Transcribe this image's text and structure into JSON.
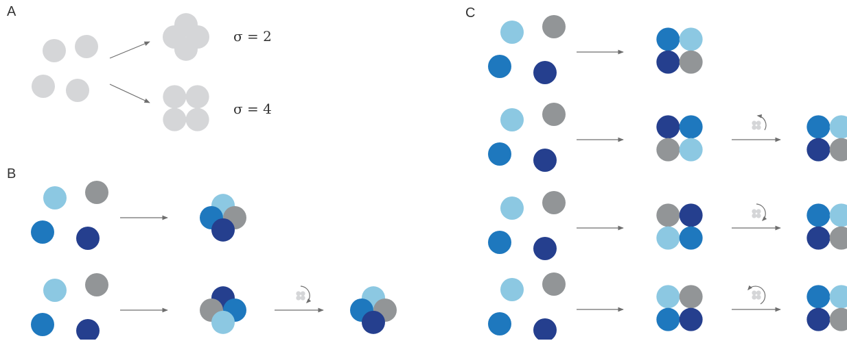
{
  "colors": {
    "light_blue": "#8CC8E2",
    "mid_blue": "#1E78BE",
    "dark_blue": "#253F8E",
    "grey": "#929597",
    "light_grey": "#D5D6D8",
    "arrow": "#6E6E6E"
  },
  "panel_a": {
    "label": "A",
    "outcomes": [
      {
        "shape": "diamond",
        "sigma_label": "σ = 2"
      },
      {
        "shape": "square",
        "sigma_label": "σ = 4"
      }
    ]
  },
  "panel_b": {
    "label": "B",
    "rows": [
      {
        "monomers": [
          "light_blue",
          "grey",
          "mid_blue",
          "dark_blue"
        ],
        "assembly": "diamond",
        "colors": [
          "light_blue",
          "mid_blue",
          "grey",
          "dark_blue"
        ],
        "rotation_icon": null
      },
      {
        "monomers": [
          "light_blue",
          "grey",
          "mid_blue",
          "dark_blue"
        ],
        "assembly": "diamond",
        "colors": [
          "dark_blue",
          "grey",
          "mid_blue",
          "light_blue"
        ],
        "rotation_icon": "cw",
        "rotated_colors": [
          "light_blue",
          "mid_blue",
          "grey",
          "dark_blue"
        ]
      }
    ]
  },
  "panel_c": {
    "label": "C",
    "rows": [
      {
        "monomers": [
          "light_blue",
          "grey",
          "mid_blue",
          "dark_blue"
        ],
        "assembly": "square",
        "colors": [
          "mid_blue",
          "light_blue",
          "dark_blue",
          "grey"
        ],
        "rotation_icon": null
      },
      {
        "monomers": [
          "light_blue",
          "grey",
          "mid_blue",
          "dark_blue"
        ],
        "assembly": "square",
        "colors": [
          "dark_blue",
          "mid_blue",
          "grey",
          "light_blue"
        ],
        "rotation_icon": "ccw",
        "rotated_colors": [
          "mid_blue",
          "light_blue",
          "dark_blue",
          "grey"
        ]
      },
      {
        "monomers": [
          "light_blue",
          "grey",
          "mid_blue",
          "dark_blue"
        ],
        "assembly": "square",
        "colors": [
          "grey",
          "dark_blue",
          "light_blue",
          "mid_blue"
        ],
        "rotation_icon": "cw",
        "rotated_colors": [
          "mid_blue",
          "light_blue",
          "dark_blue",
          "grey"
        ]
      },
      {
        "monomers": [
          "light_blue",
          "grey",
          "mid_blue",
          "dark_blue"
        ],
        "assembly": "square",
        "colors": [
          "light_blue",
          "grey",
          "mid_blue",
          "dark_blue"
        ],
        "rotation_icon": "flip",
        "rotated_colors": [
          "mid_blue",
          "light_blue",
          "dark_blue",
          "grey"
        ]
      }
    ]
  }
}
